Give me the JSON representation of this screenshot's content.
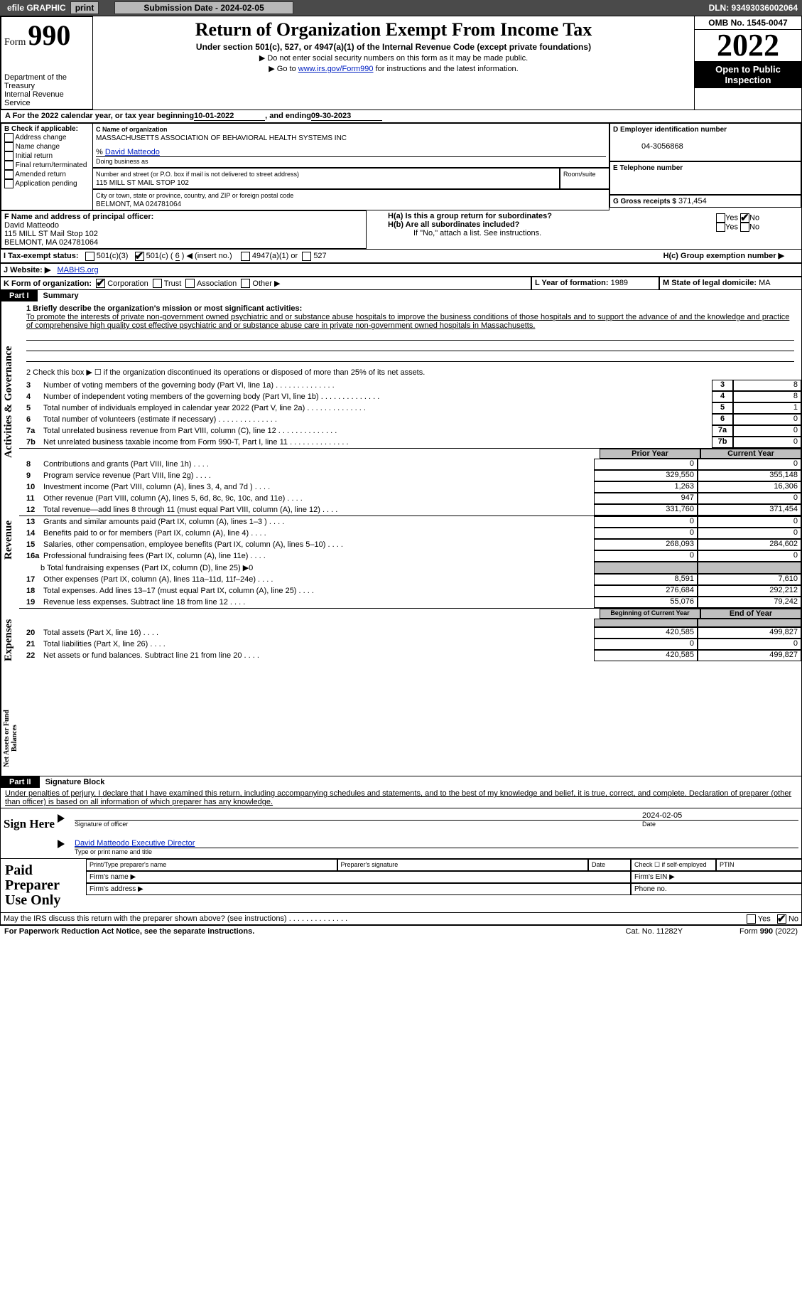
{
  "topbar": {
    "efile_label": "efile GRAPHIC",
    "print_btn": "print",
    "subdate_btn": "Submission Date - 2024-02-05",
    "dln": "DLN: 93493036002064"
  },
  "header": {
    "form_prefix": "Form",
    "form_number": "990",
    "title": "Return of Organization Exempt From Income Tax",
    "subtitle": "Under section 501(c), 527, or 4947(a)(1) of the Internal Revenue Code (except private foundations)",
    "ssn_note": "▶ Do not enter social security numbers on this form as it may be made public.",
    "goto_prefix": "▶ Go to ",
    "goto_link": "www.irs.gov/Form990",
    "goto_suffix": " for instructions and the latest information.",
    "dept": "Department of the Treasury",
    "irs": "Internal Revenue Service",
    "omb": "OMB No. 1545-0047",
    "year": "2022",
    "open_public": "Open to Public Inspection"
  },
  "lineA": {
    "prefix": "A For the 2022 calendar year, or tax year beginning ",
    "begin": "10-01-2022",
    "mid": "    , and ending ",
    "end": "09-30-2023"
  },
  "boxB": {
    "hdr": "B Check if applicable:",
    "items": [
      "Address change",
      "Name change",
      "Initial return",
      "Final return/terminated",
      "Amended return",
      "Application pending"
    ]
  },
  "boxC": {
    "label": "C Name of organization",
    "org": "MASSACHUSETTS ASSOCIATION OF BEHAVIORAL HEALTH SYSTEMS INC",
    "co_prefix": "% ",
    "co": "David Matteodo",
    "dba_label": "Doing business as",
    "street_label": "Number and street (or P.O. box if mail is not delivered to street address)",
    "room_label": "Room/suite",
    "street": "115 MILL ST MAIL STOP 102",
    "city_label": "City or town, state or province, country, and ZIP or foreign postal code",
    "city": "BELMONT, MA  024781064"
  },
  "boxD": {
    "label": "D Employer identification number",
    "value": "04-3056868"
  },
  "boxE": {
    "label": "E Telephone number"
  },
  "boxG": {
    "label": "G Gross receipts $",
    "value": "371,454"
  },
  "boxF": {
    "label": "F  Name and address of principal officer:",
    "name": "David Matteodo",
    "street": "115 MILL ST Mail Stop 102",
    "city": "BELMONT, MA  024781064"
  },
  "boxH": {
    "a_label": "H(a)  Is this a group return for subordinates?",
    "b_label": "H(b)  Are all subordinates included?",
    "note": "If \"No,\" attach a list. See instructions.",
    "c_label": "H(c)  Group exemption number ▶",
    "yes": "Yes",
    "no": "No",
    "a_checked": "no"
  },
  "taxexempt": {
    "label": "I   Tax-exempt status:",
    "c3": "501(c)(3)",
    "c_open": "501(c) ( ",
    "c_val": "6",
    "c_close": " ) ◀ (insert no.)",
    "a1": "4947(a)(1) or",
    "s527": "527"
  },
  "website": {
    "label": "J   Website: ▶",
    "value": "MABHS.org"
  },
  "lineK": {
    "label": "K Form of organization:",
    "corp": "Corporation",
    "trust": "Trust",
    "assoc": "Association",
    "other": "Other ▶"
  },
  "lineL": {
    "label": "L Year of formation:",
    "value": "1989"
  },
  "lineM": {
    "label": "M State of legal domicile:",
    "value": "MA"
  },
  "part1": {
    "label": "Part I",
    "title": "Summary"
  },
  "mission": {
    "label": "1   Briefly describe the organization's mission or most significant activities:",
    "text": "To promote the interests of private non-government owned psychiatric and or substance abuse hospitals to improve the business conditions of those hospitals and to support the advance of and the knowledge and practice of comprehensive high quality cost effective psychiatric and or substance abuse care in private non-government owned hospitals in Massachusetts."
  },
  "line2": "2   Check this box ▶ ☐  if the organization discontinued its operations or disposed of more than 25% of its net assets.",
  "govLines": [
    {
      "n": "3",
      "t": "Number of voting members of the governing body (Part VI, line 1a)",
      "v": "8"
    },
    {
      "n": "4",
      "t": "Number of independent voting members of the governing body (Part VI, line 1b)",
      "v": "8"
    },
    {
      "n": "5",
      "t": "Total number of individuals employed in calendar year 2022 (Part V, line 2a)",
      "v": "1"
    },
    {
      "n": "6",
      "t": "Total number of volunteers (estimate if necessary)",
      "v": "0"
    },
    {
      "n": "7a",
      "t": "Total unrelated business revenue from Part VIII, column (C), line 12",
      "v": "0"
    },
    {
      "n": "7b",
      "t": "Net unrelated business taxable income from Form 990-T, Part I, line 11",
      "v": "0"
    }
  ],
  "twoColHdr": {
    "prior": "Prior Year",
    "current": "Current Year",
    "begin": "Beginning of Current Year",
    "end": "End of Year"
  },
  "revenue": [
    {
      "n": "8",
      "t": "Contributions and grants (Part VIII, line 1h)",
      "p": "0",
      "c": "0"
    },
    {
      "n": "9",
      "t": "Program service revenue (Part VIII, line 2g)",
      "p": "329,550",
      "c": "355,148"
    },
    {
      "n": "10",
      "t": "Investment income (Part VIII, column (A), lines 3, 4, and 7d )",
      "p": "1,263",
      "c": "16,306"
    },
    {
      "n": "11",
      "t": "Other revenue (Part VIII, column (A), lines 5, 6d, 8c, 9c, 10c, and 11e)",
      "p": "947",
      "c": "0"
    },
    {
      "n": "12",
      "t": "Total revenue—add lines 8 through 11 (must equal Part VIII, column (A), line 12)",
      "p": "331,760",
      "c": "371,454"
    }
  ],
  "expenses": [
    {
      "n": "13",
      "t": "Grants and similar amounts paid (Part IX, column (A), lines 1–3 )",
      "p": "0",
      "c": "0"
    },
    {
      "n": "14",
      "t": "Benefits paid to or for members (Part IX, column (A), line 4)",
      "p": "0",
      "c": "0"
    },
    {
      "n": "15",
      "t": "Salaries, other compensation, employee benefits (Part IX, column (A), lines 5–10)",
      "p": "268,093",
      "c": "284,602"
    },
    {
      "n": "16a",
      "t": "Professional fundraising fees (Part IX, column (A), line 11e)",
      "p": "0",
      "c": "0"
    }
  ],
  "line_b": {
    "t": "b   Total fundraising expenses (Part IX, column (D), line 25) ▶0"
  },
  "expenses2": [
    {
      "n": "17",
      "t": "Other expenses (Part IX, column (A), lines 11a–11d, 11f–24e)",
      "p": "8,591",
      "c": "7,610"
    },
    {
      "n": "18",
      "t": "Total expenses. Add lines 13–17 (must equal Part IX, column (A), line 25)",
      "p": "276,684",
      "c": "292,212"
    },
    {
      "n": "19",
      "t": "Revenue less expenses. Subtract line 18 from line 12",
      "p": "55,076",
      "c": "79,242"
    }
  ],
  "netassets": [
    {
      "n": "20",
      "t": "Total assets (Part X, line 16)",
      "p": "420,585",
      "c": "499,827"
    },
    {
      "n": "21",
      "t": "Total liabilities (Part X, line 26)",
      "p": "0",
      "c": "0"
    },
    {
      "n": "22",
      "t": "Net assets or fund balances. Subtract line 21 from line 20",
      "p": "420,585",
      "c": "499,827"
    }
  ],
  "side": {
    "gov": "Activities & Governance",
    "rev": "Revenue",
    "exp": "Expenses",
    "net": "Net Assets or Fund Balances"
  },
  "part2": {
    "label": "Part II",
    "title": "Signature Block"
  },
  "perjury": "Under penalties of perjury, I declare that I have examined this return, including accompanying schedules and statements, and to the best of my knowledge and belief, it is true, correct, and complete. Declaration of preparer (other than officer) is based on all information of which preparer has any knowledge.",
  "sign": {
    "here": "Sign Here",
    "sig": "Signature of officer",
    "date": "Date",
    "datev": "2024-02-05",
    "nametitle": "David Matteodo  Executive Director",
    "typeprint": "Type or print name and title"
  },
  "paid": {
    "label": "Paid Preparer Use Only",
    "prepname": "Print/Type preparer's name",
    "prepsig": "Preparer's signature",
    "date": "Date",
    "check": "Check ☐ if self-employed",
    "ptin": "PTIN",
    "firmn": "Firm's name   ▶",
    "firme": "Firm's EIN ▶",
    "firma": "Firm's address ▶",
    "phone": "Phone no."
  },
  "discuss": {
    "text": "May the IRS discuss this return with the preparer shown above? (see instructions)",
    "yes": "Yes",
    "no": "No"
  },
  "footer": {
    "pra": "For Paperwork Reduction Act Notice, see the separate instructions.",
    "cat": "Cat. No. 11282Y",
    "form": "Form 990 (2022)"
  }
}
